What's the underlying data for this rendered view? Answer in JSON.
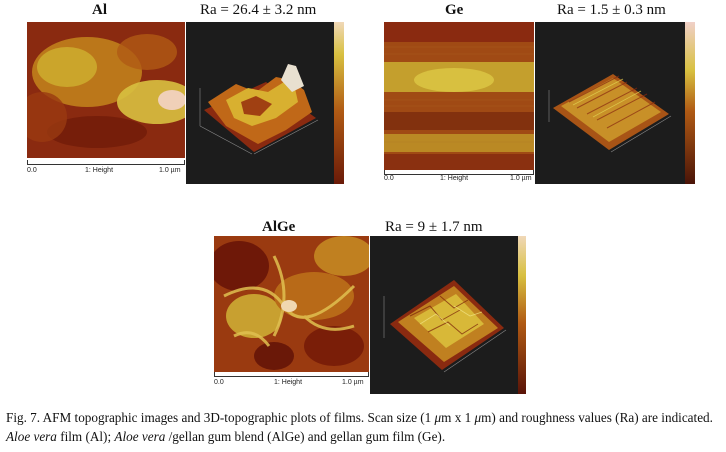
{
  "panels": [
    {
      "label": "Al",
      "ra": "Ra = 26.4 ± 3.2 nm",
      "scale_start": "0.0",
      "scale_mid": "1: Height",
      "scale_end": "1.0 µm"
    },
    {
      "label": "Ge",
      "ra": "Ra = 1.5 ± 0.3 nm",
      "scale_start": "0.0",
      "scale_mid": "1: Height",
      "scale_end": "1.0 µm"
    },
    {
      "label": "AlGe",
      "ra": "Ra = 9 ± 1.7 nm",
      "scale_start": "0.0",
      "scale_mid": "1: Height",
      "scale_end": "1.0 µm"
    }
  ],
  "caption": {
    "part1": "Fig. 7. AFM topographic images and 3D-topographic plots of films. Scan size (1 ",
    "mu1": "μ",
    "part2": "m x 1 ",
    "mu2": "μ",
    "part3": "m) and roughness values (Ra) are indicated. ",
    "aloe1": "Aloe vera",
    "part4": " film (Al); ",
    "aloe2": "Aloe vera",
    "part5": " /gellan gum blend (AlGe) and gellan gum film (Ge)."
  },
  "colors": {
    "dark": "#7a1a0a",
    "mid": "#b04a14",
    "light": "#d8c040",
    "highlight": "#f0d8b0",
    "plot_bg": "#1c1c1c"
  }
}
